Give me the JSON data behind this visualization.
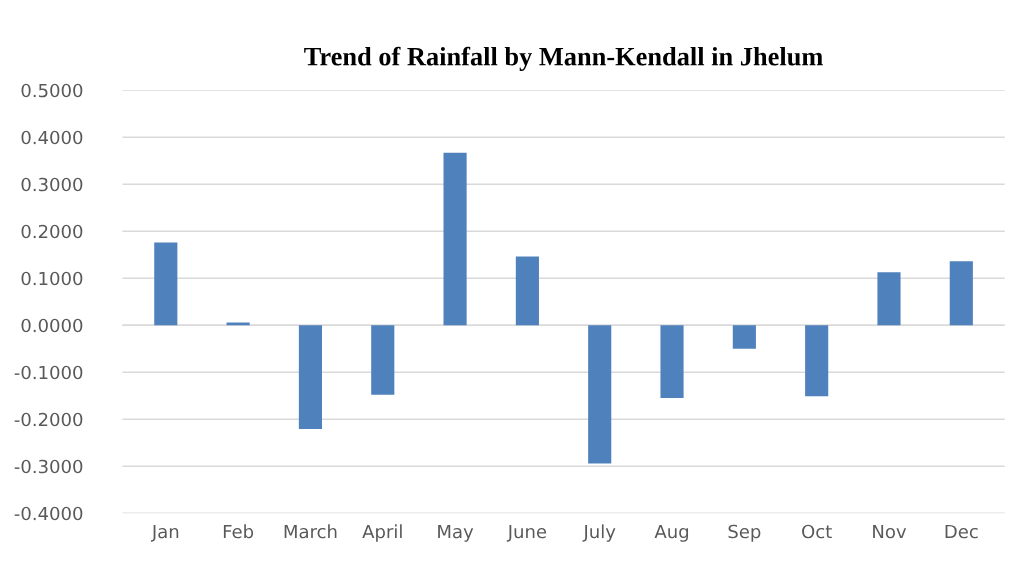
{
  "chart_data": {
    "type": "bar",
    "title": "Trend of Rainfall by Mann-Kendall in Jhelum",
    "categories": [
      "Jan",
      "Feb",
      "March",
      "April",
      "May",
      "June",
      "July",
      "Aug",
      "Sep",
      "Oct",
      "Nov",
      "Dec"
    ],
    "values": [
      0.176,
      0.006,
      -0.221,
      -0.148,
      0.367,
      0.146,
      -0.294,
      -0.155,
      -0.05,
      -0.151,
      0.113,
      0.136
    ],
    "color": "#4f81bd",
    "ylim": [
      -0.4,
      0.5
    ],
    "yticks": [
      {
        "value": -0.4,
        "label": "-0.4000"
      },
      {
        "value": -0.3,
        "label": "-0.3000"
      },
      {
        "value": -0.2,
        "label": "-0.2000"
      },
      {
        "value": -0.1,
        "label": "-0.1000"
      },
      {
        "value": 0,
        "label": "0.0000"
      },
      {
        "value": 0.1,
        "label": "0.1000"
      },
      {
        "value": 0.2,
        "label": "0.2000"
      },
      {
        "value": 0.3,
        "label": "0.3000"
      },
      {
        "value": 0.4,
        "label": "0.4000"
      },
      {
        "value": 0.5,
        "label": "0.5000"
      }
    ],
    "grid": "y",
    "legend": false
  }
}
